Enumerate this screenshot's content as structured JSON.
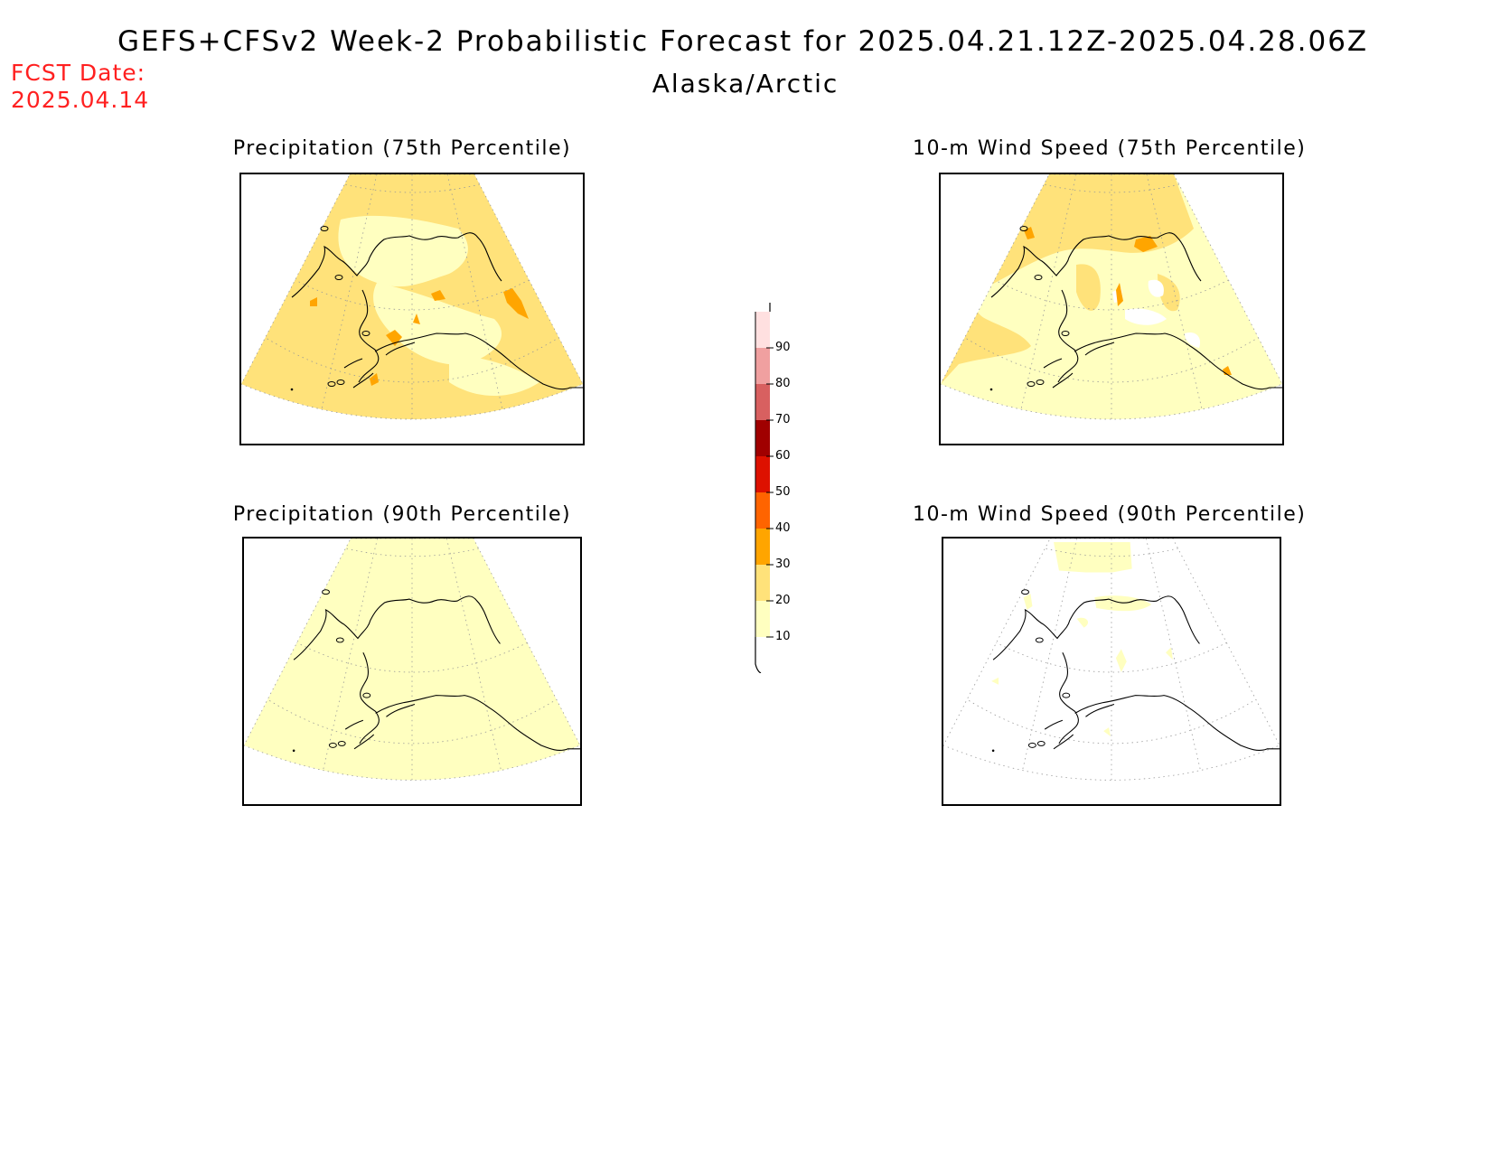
{
  "header": {
    "title": "GEFS+CFSv2 Week-2 Probabilistic Forecast for 2025.04.21.12Z-2025.04.28.06Z",
    "subtitle": "Alaska/Arctic",
    "fcst_label": "FCST Date:",
    "fcst_date": "2025.04.14"
  },
  "panels": [
    {
      "title": "Precipitation (75th Percentile)",
      "variable": "precipitation",
      "percentile": 75,
      "dominant_category": "20-30"
    },
    {
      "title": "10-m Wind Speed (75th Percentile)",
      "variable": "wind",
      "percentile": 75,
      "dominant_category": "10-20"
    },
    {
      "title": "Precipitation (90th Percentile)",
      "variable": "precipitation",
      "percentile": 90,
      "dominant_category": "10-20"
    },
    {
      "title": "10-m Wind Speed (90th Percentile)",
      "variable": "wind",
      "percentile": 90,
      "dominant_category": "<10"
    }
  ],
  "colorbar": {
    "ticks": [
      "10",
      "20",
      "30",
      "40",
      "50",
      "60",
      "70",
      "80",
      "90"
    ],
    "colors": [
      "#ffffc0",
      "#ffe27a",
      "#ffa500",
      "#ff6400",
      "#dd1100",
      "#a00000",
      "#d86060",
      "#f0a0a0",
      "#ffe0e0"
    ]
  },
  "colors": {
    "title_text": "#000000",
    "fcst_text": "#ff2020",
    "coastline": "#000000",
    "graticule": "#999999"
  }
}
